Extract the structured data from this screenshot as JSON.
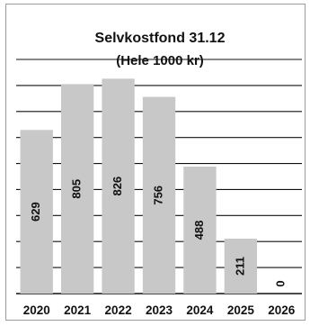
{
  "chart_data": {
    "type": "bar",
    "title": "Selvkostfond 31.12",
    "subtitle": "(Hele 1000 kr)",
    "categories": [
      "2020",
      "2021",
      "2022",
      "2023",
      "2024",
      "2025",
      "2026"
    ],
    "values": [
      629,
      805,
      826,
      756,
      488,
      211,
      0
    ],
    "value_labels": [
      "629",
      "805",
      "826",
      "756",
      "488",
      "211",
      "0"
    ],
    "ylim": [
      0,
      900
    ],
    "grid": true,
    "legend": "none",
    "bar_color": "#c8c8c8",
    "grid_color": "#111111"
  }
}
